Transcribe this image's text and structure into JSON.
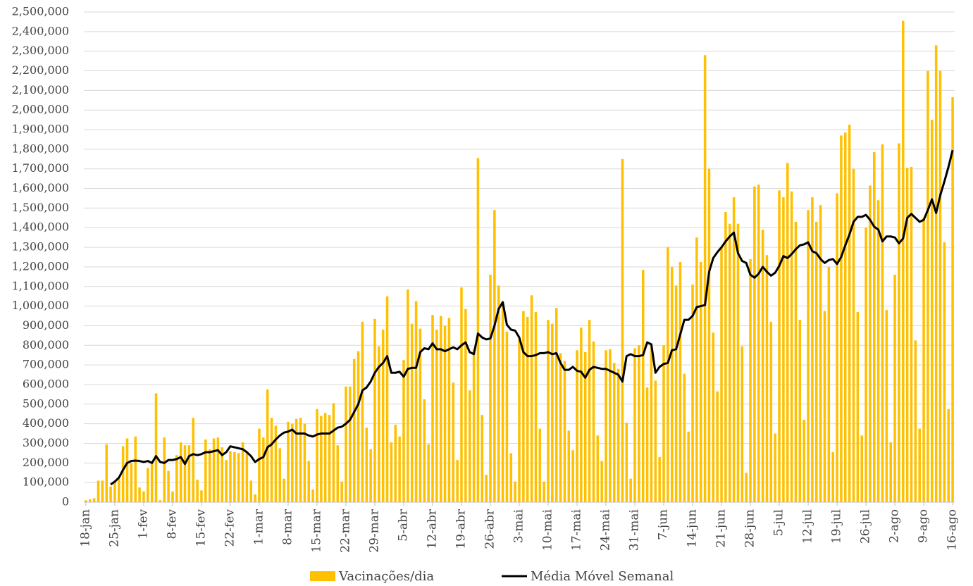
{
  "chart_data": {
    "type": "bar",
    "categories": [
      "18-jan",
      null,
      null,
      null,
      null,
      null,
      null,
      "25-jan",
      null,
      null,
      null,
      null,
      null,
      null,
      "1-fev",
      null,
      null,
      null,
      null,
      null,
      null,
      "8-fev",
      null,
      null,
      null,
      null,
      null,
      null,
      "15-fev",
      null,
      null,
      null,
      null,
      null,
      null,
      "22-fev",
      null,
      null,
      null,
      null,
      null,
      null,
      "1-mar",
      null,
      null,
      null,
      null,
      null,
      null,
      "8-mar",
      null,
      null,
      null,
      null,
      null,
      null,
      "15-mar",
      null,
      null,
      null,
      null,
      null,
      null,
      "22-mar",
      null,
      null,
      null,
      null,
      null,
      null,
      "29-mar",
      null,
      null,
      null,
      null,
      null,
      null,
      "5-abr",
      null,
      null,
      null,
      null,
      null,
      null,
      "12-abr",
      null,
      null,
      null,
      null,
      null,
      null,
      "19-abr",
      null,
      null,
      null,
      null,
      null,
      null,
      "26-abr",
      null,
      null,
      null,
      null,
      null,
      null,
      "3-mai",
      null,
      null,
      null,
      null,
      null,
      null,
      "10-mai",
      null,
      null,
      null,
      null,
      null,
      null,
      "17-mai",
      null,
      null,
      null,
      null,
      null,
      null,
      "24-mai",
      null,
      null,
      null,
      null,
      null,
      null,
      "31-mai",
      null,
      null,
      null,
      null,
      null,
      null,
      "7-jun",
      null,
      null,
      null,
      null,
      null,
      null,
      "14-jun",
      null,
      null,
      null,
      null,
      null,
      null,
      "21-jun",
      null,
      null,
      null,
      null,
      null,
      null,
      "28-jun",
      null,
      null,
      null,
      null,
      null,
      null,
      "5-jul",
      null,
      null,
      null,
      null,
      null,
      null,
      "12-jul",
      null,
      null,
      null,
      null,
      null,
      null,
      "19-jul",
      null,
      null,
      null,
      null,
      null,
      null,
      "26-jul",
      null,
      null,
      null,
      null,
      null,
      null,
      "2-ago",
      null,
      null,
      null,
      null,
      null,
      null,
      "9-ago",
      null,
      null,
      null,
      null,
      null,
      null,
      "16-ago"
    ],
    "series": [
      {
        "name": "Vacinações/dia",
        "type": "bar",
        "color": "#ffc000",
        "values": [
          10000,
          15000,
          20000,
          110000,
          110000,
          295000,
          80000,
          100000,
          120000,
          285000,
          325000,
          200000,
          335000,
          75000,
          55000,
          175000,
          200000,
          555000,
          10000,
          330000,
          160000,
          55000,
          240000,
          305000,
          290000,
          290000,
          430000,
          115000,
          60000,
          320000,
          270000,
          325000,
          330000,
          280000,
          215000,
          260000,
          255000,
          250000,
          305000,
          250000,
          110000,
          40000,
          375000,
          330000,
          575000,
          430000,
          390000,
          275000,
          120000,
          410000,
          400000,
          425000,
          430000,
          400000,
          210000,
          65000,
          475000,
          440000,
          455000,
          445000,
          505000,
          290000,
          105000,
          590000,
          590000,
          730000,
          770000,
          920000,
          380000,
          270000,
          935000,
          795000,
          880000,
          1050000,
          305000,
          395000,
          335000,
          725000,
          1085000,
          910000,
          1025000,
          885000,
          525000,
          295000,
          955000,
          880000,
          950000,
          900000,
          940000,
          610000,
          215000,
          1095000,
          985000,
          570000,
          780000,
          1755000,
          445000,
          140000,
          1160000,
          1490000,
          1105000,
          1025000,
          870000,
          250000,
          105000,
          830000,
          975000,
          945000,
          1055000,
          970000,
          375000,
          105000,
          930000,
          910000,
          990000,
          760000,
          720000,
          365000,
          265000,
          775000,
          890000,
          765000,
          930000,
          820000,
          340000,
          210000,
          775000,
          780000,
          710000,
          680000,
          1750000,
          405000,
          120000,
          785000,
          800000,
          1185000,
          585000,
          790000,
          620000,
          230000,
          800000,
          1300000,
          1200000,
          1105000,
          1225000,
          655000,
          360000,
          1110000,
          1350000,
          1225000,
          2280000,
          1700000,
          865000,
          565000,
          1300000,
          1480000,
          1420000,
          1555000,
          1420000,
          795000,
          150000,
          1240000,
          1610000,
          1620000,
          1390000,
          1260000,
          920000,
          350000,
          1590000,
          1555000,
          1730000,
          1585000,
          1430000,
          930000,
          420000,
          1490000,
          1555000,
          1430000,
          1515000,
          975000,
          1200000,
          255000,
          1575000,
          1870000,
          1885000,
          1925000,
          1700000,
          970000,
          340000,
          1400000,
          1615000,
          1785000,
          1540000,
          1825000,
          980000,
          305000,
          1160000,
          1830000,
          2455000,
          1705000,
          1710000,
          825000,
          375000,
          1450000,
          2200000,
          1950000,
          2330000,
          2200000,
          1325000,
          475000,
          2065000
        ]
      },
      {
        "name": "Média Móvel Semanal",
        "type": "line",
        "color": "#000000",
        "values": [
          null,
          null,
          null,
          null,
          null,
          null,
          90000,
          105000,
          125000,
          165000,
          200000,
          210000,
          212000,
          210000,
          205000,
          210000,
          200000,
          235000,
          205000,
          200000,
          215000,
          215000,
          220000,
          230000,
          195000,
          235000,
          245000,
          240000,
          245000,
          255000,
          255000,
          260000,
          265000,
          240000,
          255000,
          285000,
          280000,
          275000,
          270000,
          255000,
          235000,
          205000,
          220000,
          230000,
          280000,
          295000,
          320000,
          340000,
          355000,
          360000,
          370000,
          350000,
          350000,
          350000,
          340000,
          335000,
          345000,
          350000,
          350000,
          350000,
          365000,
          380000,
          385000,
          400000,
          420000,
          460000,
          500000,
          570000,
          585000,
          615000,
          660000,
          690000,
          710000,
          745000,
          660000,
          660000,
          665000,
          640000,
          680000,
          685000,
          685000,
          765000,
          785000,
          780000,
          810000,
          780000,
          780000,
          770000,
          780000,
          790000,
          780000,
          800000,
          815000,
          765000,
          755000,
          860000,
          840000,
          830000,
          835000,
          900000,
          985000,
          1020000,
          905000,
          880000,
          875000,
          840000,
          765000,
          745000,
          745000,
          750000,
          760000,
          760000,
          765000,
          755000,
          760000,
          710000,
          675000,
          675000,
          690000,
          670000,
          665000,
          635000,
          675000,
          690000,
          685000,
          680000,
          680000,
          670000,
          660000,
          650000,
          615000,
          745000,
          755000,
          745000,
          745000,
          750000,
          815000,
          805000,
          660000,
          690000,
          705000,
          710000,
          775000,
          780000,
          855000,
          930000,
          930000,
          950000,
          995000,
          1000000,
          1005000,
          1175000,
          1245000,
          1275000,
          1300000,
          1330000,
          1355000,
          1375000,
          1270000,
          1230000,
          1220000,
          1160000,
          1145000,
          1165000,
          1200000,
          1175000,
          1155000,
          1170000,
          1205000,
          1255000,
          1245000,
          1265000,
          1290000,
          1310000,
          1315000,
          1325000,
          1280000,
          1270000,
          1240000,
          1220000,
          1235000,
          1240000,
          1215000,
          1250000,
          1310000,
          1365000,
          1430000,
          1455000,
          1455000,
          1465000,
          1440000,
          1405000,
          1390000,
          1330000,
          1355000,
          1355000,
          1350000,
          1320000,
          1345000,
          1450000,
          1470000,
          1450000,
          1430000,
          1440000,
          1490000,
          1545000,
          1475000,
          1565000,
          1635000,
          1710000,
          1795000
        ]
      }
    ],
    "ylim": [
      0,
      2500000
    ],
    "yticks": [
      0,
      {
        "value": 100000,
        "label": "100,000"
      },
      {
        "value": 200000,
        "label": "200,000"
      },
      {
        "value": 300000,
        "label": "300,000"
      },
      {
        "value": 400000,
        "label": "400,000"
      },
      {
        "value": 500000,
        "label": "500,000"
      },
      {
        "value": 600000,
        "label": "600,000"
      },
      {
        "value": 700000,
        "label": "700,000"
      },
      {
        "value": 800000,
        "label": "800,000"
      },
      {
        "value": 900000,
        "label": "900,000"
      },
      {
        "value": 1000000,
        "label": "1,000,000"
      },
      {
        "value": 1100000,
        "label": "1,100,000"
      },
      {
        "value": 1200000,
        "label": "1,200,000"
      },
      {
        "value": 1300000,
        "label": "1,300,000"
      },
      {
        "value": 1400000,
        "label": "1,400,000"
      },
      {
        "value": 1500000,
        "label": "1,500,000"
      },
      {
        "value": 1600000,
        "label": "1,600,000"
      },
      {
        "value": 1700000,
        "label": "1,700,000"
      },
      {
        "value": 1800000,
        "label": "1,800,000"
      },
      {
        "value": 1900000,
        "label": "1,900,000"
      },
      {
        "value": 2000000,
        "label": "2,000,000"
      },
      {
        "value": 2100000,
        "label": "2,100,000"
      },
      {
        "value": 2200000,
        "label": "2,200,000"
      },
      {
        "value": 2300000,
        "label": "2,300,000"
      },
      {
        "value": 2400000,
        "label": "2,400,000"
      },
      {
        "value": 2500000,
        "label": "2,500,000"
      }
    ],
    "grid": true,
    "legend": "bottom"
  }
}
